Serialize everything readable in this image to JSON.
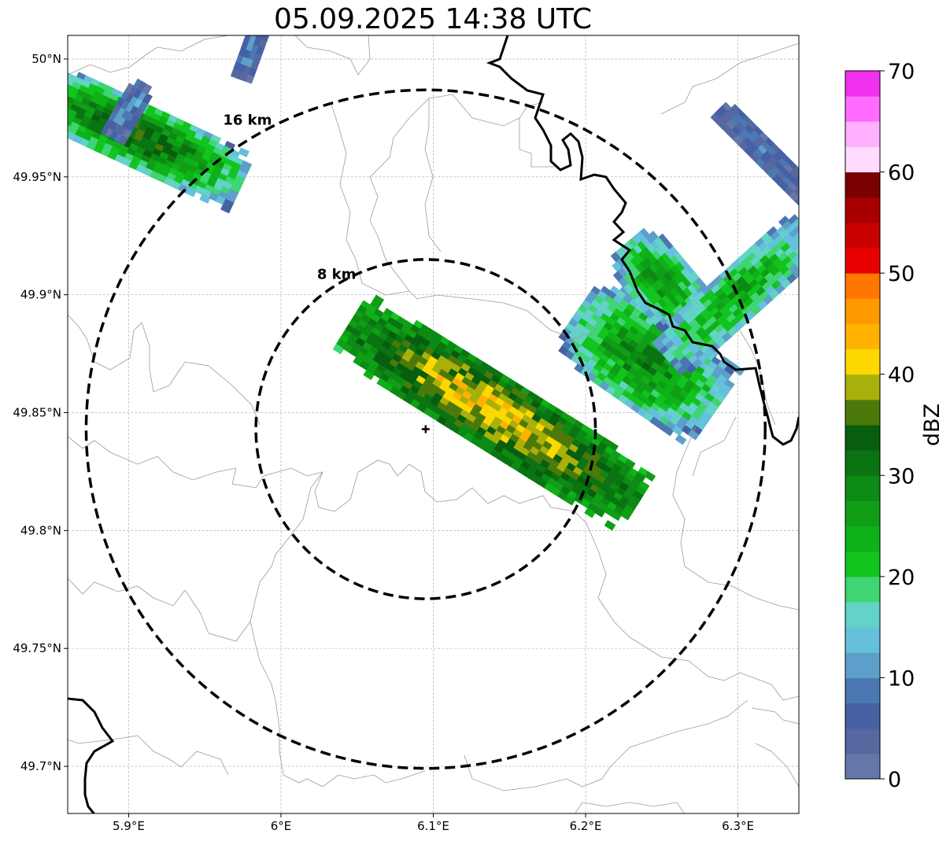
{
  "title": "05.09.2025 14:38 UTC",
  "map": {
    "lon_range": [
      5.86,
      6.34
    ],
    "lat_range": [
      49.68,
      50.01
    ],
    "radar_site": {
      "lon": 6.095,
      "lat": 49.843
    },
    "lat_ticks": [
      {
        "value": 49.7,
        "label": "49.7°N"
      },
      {
        "value": 49.75,
        "label": "49.75°N"
      },
      {
        "value": 49.8,
        "label": "49.8°N"
      },
      {
        "value": 49.85,
        "label": "49.85°N"
      },
      {
        "value": 49.9,
        "label": "49.9°N"
      },
      {
        "value": 49.95,
        "label": "49.95°N"
      },
      {
        "value": 50.0,
        "label": "50°N"
      }
    ],
    "lon_ticks": [
      {
        "value": 5.9,
        "label": "5.9°E"
      },
      {
        "value": 6.0,
        "label": "6°E"
      },
      {
        "value": 6.1,
        "label": "6.1°E"
      },
      {
        "value": 6.2,
        "label": "6.2°E"
      },
      {
        "value": 6.3,
        "label": "6.3°E"
      }
    ],
    "range_rings": [
      {
        "radius_km": 8,
        "label": "8 km"
      },
      {
        "radius_km": 16,
        "label": "16 km"
      }
    ],
    "grid": true
  },
  "colorbar": {
    "label": "dBZ",
    "min": 0,
    "max": 70,
    "step": 2.5,
    "tick_labels": [
      "0",
      "10",
      "20",
      "30",
      "40",
      "50",
      "60",
      "70"
    ],
    "colors": [
      "#6577a8",
      "#5668a0",
      "#4561a4",
      "#4b78b0",
      "#5d9fca",
      "#65c0dc",
      "#62d3c6",
      "#3ed572",
      "#12c41e",
      "#0eb118",
      "#0f9e16",
      "#0c8a14",
      "#0a7412",
      "#065e0e",
      "#4b7a0a",
      "#aab00a",
      "#fed800",
      "#ffb300",
      "#ff9900",
      "#ff7700",
      "#e80000",
      "#c80000",
      "#a80000",
      "#780000",
      "#ffdcff",
      "#ffb0ff",
      "#ff6cff",
      "#f032ee"
    ]
  },
  "echo_cells": [
    {
      "lon": 5.905,
      "lat": 49.968,
      "along_km": 11,
      "across_km": 3.0,
      "angle": -25,
      "peak_dbz": 34,
      "core_frac": 0.7
    },
    {
      "lon": 5.9,
      "lat": 49.978,
      "along_km": 3,
      "across_km": 1.2,
      "angle": 60,
      "peak_dbz": 12,
      "core_frac": 0.8
    },
    {
      "lon": 5.98,
      "lat": 50.002,
      "along_km": 2.5,
      "across_km": 1.0,
      "angle": 70,
      "peak_dbz": 10,
      "core_frac": 0.8
    },
    {
      "lon": 6.14,
      "lat": 49.85,
      "along_km": 16,
      "across_km": 3.5,
      "angle": -32,
      "peak_dbz": 42,
      "core_frac": 0.45
    },
    {
      "lon": 6.24,
      "lat": 49.872,
      "along_km": 8,
      "across_km": 4.5,
      "angle": -35,
      "peak_dbz": 30,
      "core_frac": 0.7
    },
    {
      "lon": 6.25,
      "lat": 49.905,
      "along_km": 5,
      "across_km": 3,
      "angle": -50,
      "peak_dbz": 28,
      "core_frac": 0.7
    },
    {
      "lon": 6.3,
      "lat": 49.9,
      "along_km": 9,
      "across_km": 2.5,
      "angle": 42,
      "peak_dbz": 26,
      "core_frac": 0.65
    },
    {
      "lon": 6.318,
      "lat": 49.96,
      "along_km": 6,
      "across_km": 1.2,
      "angle": -45,
      "peak_dbz": 8,
      "core_frac": 0.8
    }
  ]
}
